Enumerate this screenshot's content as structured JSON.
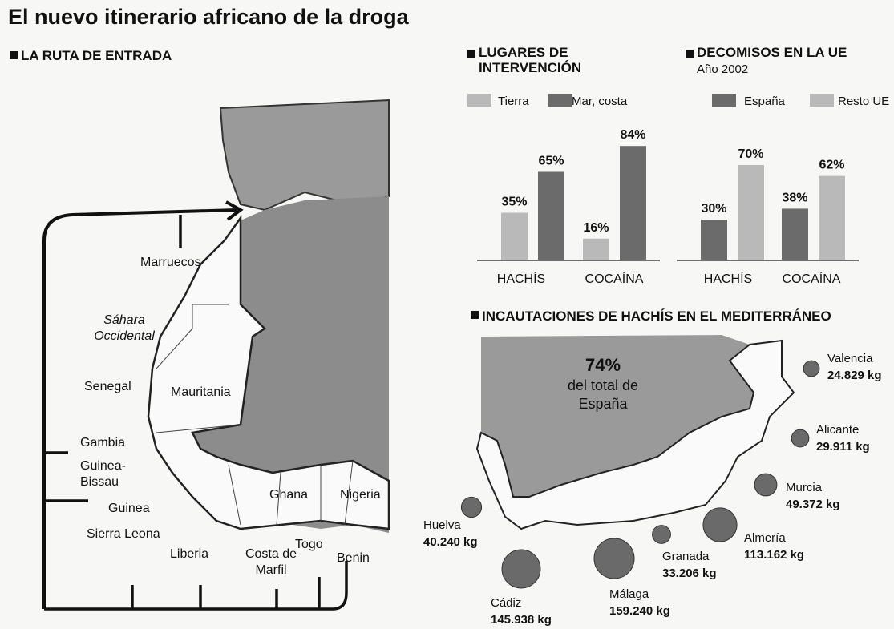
{
  "title": "El nuevo itinerario africano de la droga",
  "route_map": {
    "title": "LA RUTA DE ENTRADA",
    "labels": [
      "Marruecos",
      "Sáhara Occidental",
      "Mauritania",
      "Senegal",
      "Gambia",
      "Guinea-Bissau",
      "Guinea",
      "Sierra Leona",
      "Liberia",
      "Costa de Marfil",
      "Ghana",
      "Togo",
      "Benin",
      "Nigeria"
    ]
  },
  "chart_data": [
    {
      "type": "bar",
      "title": "LUGARES DE INTERVENCIÓN",
      "categories": [
        "HACHÍS",
        "COCAÍNA"
      ],
      "series": [
        {
          "name": "Tierra",
          "color": "#b9b9b9",
          "values": [
            35,
            16
          ],
          "value_labels": [
            "35%",
            "16%"
          ]
        },
        {
          "name": "Mar, costa",
          "color": "#6b6b6b",
          "values": [
            65,
            84
          ],
          "value_labels": [
            "65%",
            "84%"
          ]
        }
      ]
    },
    {
      "type": "bar",
      "title": "DECOMISOS EN LA UE",
      "subtitle": "Año 2002",
      "categories": [
        "HACHÍS",
        "COCAÍNA"
      ],
      "series": [
        {
          "name": "España",
          "color": "#6b6b6b",
          "values": [
            30,
            38
          ],
          "value_labels": [
            "30%",
            "38%"
          ]
        },
        {
          "name": "Resto UE",
          "color": "#b9b9b9",
          "values": [
            70,
            62
          ],
          "value_labels": [
            "70%",
            "62%"
          ]
        }
      ]
    }
  ],
  "hashish_map": {
    "title": "INCAUTACIONES DE HACHÍS EN EL MEDITERRÁNEO",
    "share": "74%",
    "note": "del total de España",
    "regions": [
      {
        "name": "Valencia",
        "value": 24829,
        "label": "24.829 kg"
      },
      {
        "name": "Alicante",
        "value": 29911,
        "label": "29.911 kg"
      },
      {
        "name": "Murcia",
        "value": 49372,
        "label": "49.372 kg"
      },
      {
        "name": "Almería",
        "value": 113162,
        "label": "113.162 kg"
      },
      {
        "name": "Granada",
        "value": 33206,
        "label": "33.206 kg"
      },
      {
        "name": "Málaga",
        "value": 159240,
        "label": "159.240 kg"
      },
      {
        "name": "Cádiz",
        "value": 145938,
        "label": "145.938 kg"
      },
      {
        "name": "Huelva",
        "value": 40240,
        "label": "40.240 kg"
      }
    ]
  }
}
